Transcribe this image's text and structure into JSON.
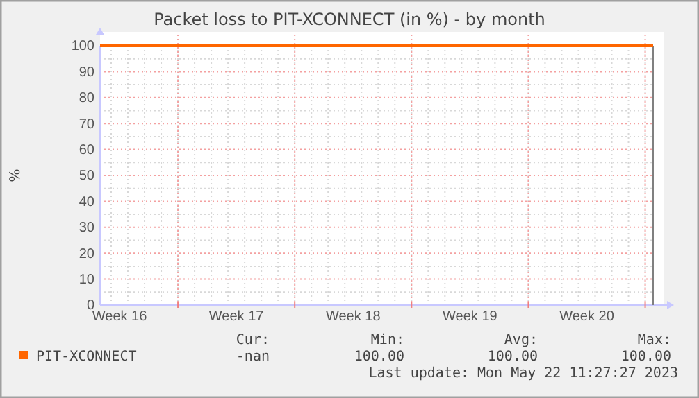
{
  "chart_data": {
    "type": "line",
    "title": "Packet loss to PIT-XCONNECT (in %) - by month",
    "ylabel": "%",
    "x": [
      "2023-04-19T08:00",
      "2023-05-22T11:27"
    ],
    "series": [
      {
        "name": "PIT-XCONNECT",
        "color": "#ff6600",
        "values": [
          100,
          100
        ]
      }
    ],
    "xlim": [
      "2023-04-19T08:00",
      "2023-05-22T11:27"
    ],
    "xticks": [
      {
        "value": "2023-04-20T12:00",
        "label": "Week 16"
      },
      {
        "value": "2023-04-24",
        "label": null
      },
      {
        "value": "2023-04-27T12:00",
        "label": "Week 17"
      },
      {
        "value": "2023-05-01",
        "label": null
      },
      {
        "value": "2023-05-04T12:00",
        "label": "Week 18"
      },
      {
        "value": "2023-05-08",
        "label": null
      },
      {
        "value": "2023-05-11T12:00",
        "label": "Week 19"
      },
      {
        "value": "2023-05-15",
        "label": null
      },
      {
        "value": "2023-05-18T12:00",
        "label": "Week 20"
      },
      {
        "value": "2023-05-22",
        "label": null
      }
    ],
    "ylim": [
      0,
      100
    ],
    "yticks": [
      0,
      10,
      20,
      30,
      40,
      50,
      60,
      70,
      80,
      90,
      100
    ],
    "grid": true,
    "legend": "bottom",
    "marker": "none",
    "line_style": "solid",
    "ref_lines": [
      {
        "axis": "x",
        "value": "2023-05-22T11:27",
        "label": null,
        "color": "#808080"
      }
    ],
    "annotations": [
      "Cur:",
      "Min:",
      "Avg:",
      "Max:",
      "-nan",
      "100.00",
      "100.00",
      "100.00",
      "Last update: Mon May 22 11:27:27 2023"
    ]
  }
}
